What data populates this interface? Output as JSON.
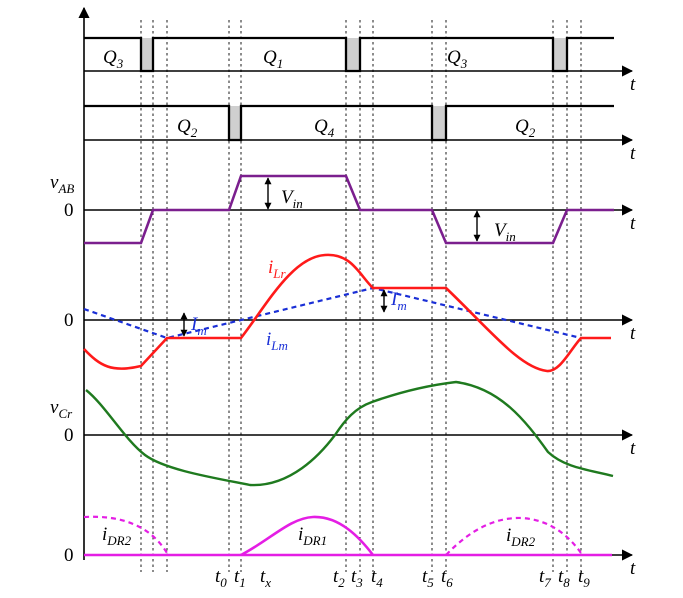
{
  "colors": {
    "vab": "#7b1f8e",
    "ilr": "#ff1a1a",
    "ilm": "#1a2fd6",
    "vcr": "#1f7a1f",
    "idr": "#e41ee4"
  },
  "axis_label": "t",
  "zero": "0",
  "gates_top": [
    {
      "name": "Q",
      "sub": "3"
    },
    {
      "name": "Q",
      "sub": "1"
    },
    {
      "name": "Q",
      "sub": "3"
    }
  ],
  "gates_bottom": [
    {
      "name": "Q",
      "sub": "2"
    },
    {
      "name": "Q",
      "sub": "4"
    },
    {
      "name": "Q",
      "sub": "2"
    }
  ],
  "vab": {
    "name": "v",
    "sub": "AB",
    "vin_name": "V",
    "vin_sub": "in"
  },
  "currents": {
    "ilr_name": "i",
    "ilr_sub": "Lr",
    "ilm_name": "i",
    "ilm_sub": "Lm",
    "im_name": "I",
    "im_sub": "m"
  },
  "vcr": {
    "name": "v",
    "sub": "Cr"
  },
  "idr": {
    "name": "i",
    "sub_dr2": "DR2",
    "sub_dr1": "DR1"
  },
  "time_markers": [
    {
      "name": "t",
      "sub": "0"
    },
    {
      "name": "t",
      "sub": "1"
    },
    {
      "name": "t",
      "sub": "x"
    },
    {
      "name": "t",
      "sub": "2"
    },
    {
      "name": "t",
      "sub": "3"
    },
    {
      "name": "t",
      "sub": "4"
    },
    {
      "name": "t",
      "sub": "5"
    },
    {
      "name": "t",
      "sub": "6"
    },
    {
      "name": "t",
      "sub": "7"
    },
    {
      "name": "t",
      "sub": "8"
    },
    {
      "name": "t",
      "sub": "9"
    }
  ]
}
